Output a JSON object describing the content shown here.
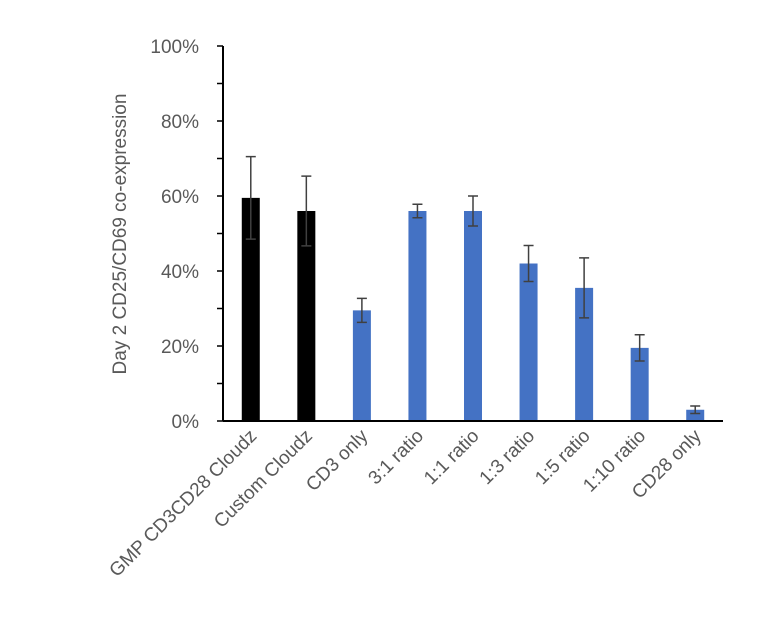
{
  "chart_data": {
    "type": "bar",
    "title": "",
    "xlabel": "",
    "ylabel": "Day 2 CD25/CD69 co-expression",
    "ylim": [
      0,
      100
    ],
    "y_ticks": [
      "0%",
      "20%",
      "40%",
      "60%",
      "80%",
      "100%"
    ],
    "grid": false,
    "categories": [
      "GMP CD3CD28 Cloudz",
      "Custom Cloudz",
      "CD3 only",
      "3:1 ratio",
      "1:1 ratio",
      "1:3 ratio",
      "1:5 ratio",
      "1:10 ratio",
      "CD28 only"
    ],
    "values": [
      59.5,
      56,
      29.5,
      56,
      56,
      42,
      35.5,
      19.5,
      3
    ],
    "error": [
      11,
      9.3,
      3.2,
      1.8,
      4,
      4.8,
      8,
      3.5,
      1
    ],
    "colors": [
      "#000000",
      "#000000",
      "#4472C4",
      "#4472C4",
      "#4472C4",
      "#4472C4",
      "#4472C4",
      "#4472C4",
      "#4472C4"
    ]
  }
}
